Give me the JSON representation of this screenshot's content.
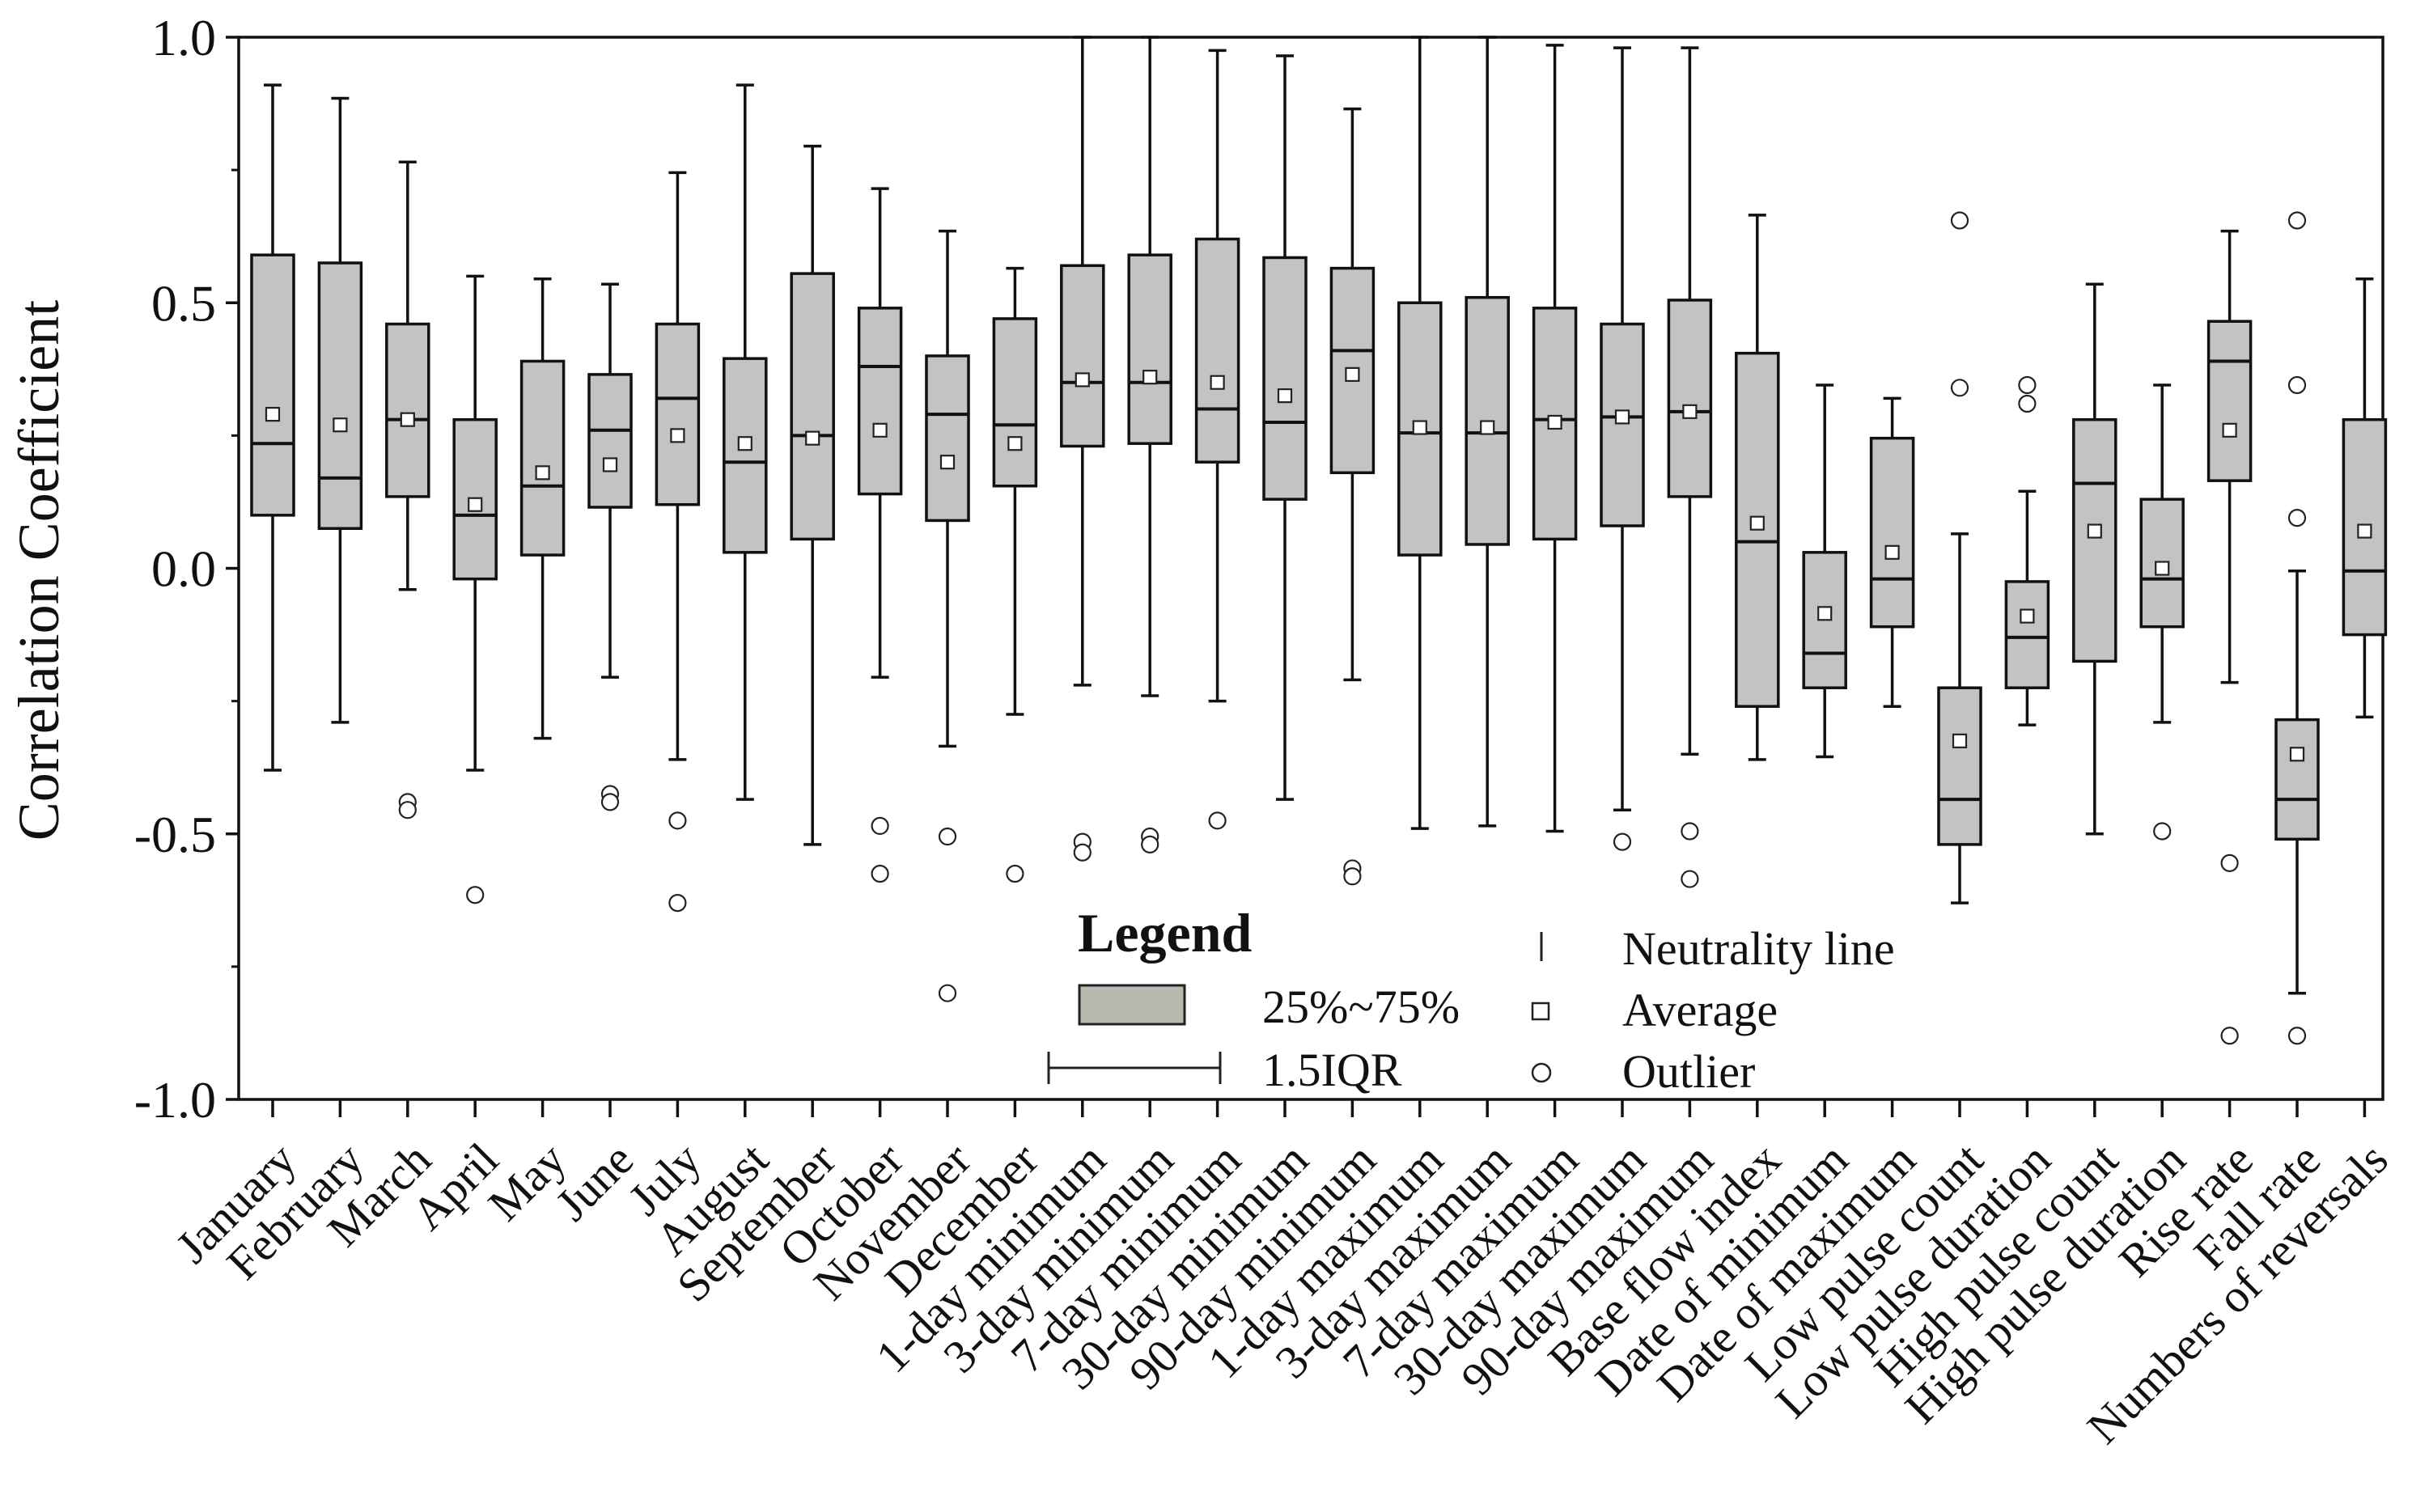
{
  "chart_data": {
    "type": "boxplot",
    "title": "",
    "xlabel": "",
    "ylabel": "Correlation  Coefficient",
    "ylim": [
      -1.0,
      1.0
    ],
    "yticks": [
      "1.0",
      "0.5",
      "0.0",
      "-0.5",
      "-1.0"
    ],
    "ytick_values": [
      1.0,
      0.5,
      0.0,
      -0.5,
      -1.0
    ],
    "box_fill": "#c3c3c3",
    "legend": {
      "title": "Legend",
      "position": "bottom-center",
      "items": [
        {
          "key": "box",
          "label": "25%~75%",
          "color": "#b8bab0"
        },
        {
          "key": "whisker",
          "label": "1.5IQR"
        },
        {
          "key": "neutrality",
          "label": "Neutrality line"
        },
        {
          "key": "average",
          "label": "Average"
        },
        {
          "key": "outlier",
          "label": "Outlier"
        }
      ]
    },
    "categories": [
      "January",
      "February",
      "March",
      "April",
      "May",
      "June",
      "July",
      "August",
      "September",
      "October",
      "November",
      "December",
      "1-day minimum",
      "3-day minimum",
      "7-day minimum",
      "30-day minimum",
      "90-day minimum",
      "1-day maximum",
      "3-day maximum",
      "7-day maximum",
      "30-day maximum",
      "90-day maximum",
      "Base flow index",
      "Date of minimum",
      "Date of maximum",
      "Low pulse count",
      "Low pulse duration",
      "High pulse count",
      "High pulse duration",
      "Rise rate",
      "Fall rate",
      "Numbers of reversals"
    ],
    "series": [
      {
        "name": "January",
        "whisker_low": -0.38,
        "q1": 0.1,
        "median": 0.235,
        "q3": 0.59,
        "whisker_high": 0.91,
        "mean": 0.29,
        "outliers": []
      },
      {
        "name": "February",
        "whisker_low": -0.29,
        "q1": 0.075,
        "median": 0.17,
        "q3": 0.575,
        "whisker_high": 0.885,
        "mean": 0.27,
        "outliers": []
      },
      {
        "name": "March",
        "whisker_low": -0.04,
        "q1": 0.135,
        "median": 0.28,
        "q3": 0.46,
        "whisker_high": 0.765,
        "mean": 0.28,
        "outliers": [
          -0.44,
          -0.455
        ]
      },
      {
        "name": "April",
        "whisker_low": -0.38,
        "q1": -0.02,
        "median": 0.1,
        "q3": 0.28,
        "whisker_high": 0.55,
        "mean": 0.12,
        "outliers": [
          -0.615
        ]
      },
      {
        "name": "May",
        "whisker_low": -0.32,
        "q1": 0.025,
        "median": 0.155,
        "q3": 0.39,
        "whisker_high": 0.545,
        "mean": 0.18,
        "outliers": []
      },
      {
        "name": "June",
        "whisker_low": -0.205,
        "q1": 0.115,
        "median": 0.26,
        "q3": 0.365,
        "whisker_high": 0.535,
        "mean": 0.195,
        "outliers": [
          -0.425,
          -0.44
        ]
      },
      {
        "name": "July",
        "whisker_low": -0.36,
        "q1": 0.12,
        "median": 0.32,
        "q3": 0.46,
        "whisker_high": 0.745,
        "mean": 0.25,
        "outliers": [
          -0.475,
          -0.63
        ]
      },
      {
        "name": "August",
        "whisker_low": -0.435,
        "q1": 0.03,
        "median": 0.2,
        "q3": 0.395,
        "whisker_high": 0.91,
        "mean": 0.235,
        "outliers": []
      },
      {
        "name": "September",
        "whisker_low": -0.52,
        "q1": 0.055,
        "median": 0.25,
        "q3": 0.555,
        "whisker_high": 0.795,
        "mean": 0.245,
        "outliers": []
      },
      {
        "name": "October",
        "whisker_low": -0.205,
        "q1": 0.14,
        "median": 0.38,
        "q3": 0.49,
        "whisker_high": 0.715,
        "mean": 0.26,
        "outliers": [
          -0.485,
          -0.575
        ]
      },
      {
        "name": "November",
        "whisker_low": -0.335,
        "q1": 0.09,
        "median": 0.29,
        "q3": 0.4,
        "whisker_high": 0.635,
        "mean": 0.2,
        "outliers": [
          -0.505,
          -0.8
        ]
      },
      {
        "name": "December",
        "whisker_low": -0.275,
        "q1": 0.155,
        "median": 0.27,
        "q3": 0.47,
        "whisker_high": 0.565,
        "mean": 0.235,
        "outliers": [
          -0.575
        ]
      },
      {
        "name": "1-day minimum",
        "whisker_low": -0.22,
        "q1": 0.23,
        "median": 0.35,
        "q3": 0.57,
        "whisker_high": 1.0,
        "mean": 0.355,
        "outliers": [
          -0.515,
          -0.535
        ]
      },
      {
        "name": "3-day minimum",
        "whisker_low": -0.24,
        "q1": 0.235,
        "median": 0.35,
        "q3": 0.59,
        "whisker_high": 1.0,
        "mean": 0.36,
        "outliers": [
          -0.505,
          -0.52
        ]
      },
      {
        "name": "7-day minimum",
        "whisker_low": -0.25,
        "q1": 0.2,
        "median": 0.3,
        "q3": 0.62,
        "whisker_high": 0.975,
        "mean": 0.35,
        "outliers": [
          -0.475
        ]
      },
      {
        "name": "30-day minimum",
        "whisker_low": -0.435,
        "q1": 0.13,
        "median": 0.275,
        "q3": 0.585,
        "whisker_high": 0.965,
        "mean": 0.325,
        "outliers": []
      },
      {
        "name": "90-day minimum",
        "whisker_low": -0.21,
        "q1": 0.18,
        "median": 0.41,
        "q3": 0.565,
        "whisker_high": 0.865,
        "mean": 0.365,
        "outliers": [
          -0.565,
          -0.58
        ]
      },
      {
        "name": "1-day maximum",
        "whisker_low": -0.49,
        "q1": 0.025,
        "median": 0.255,
        "q3": 0.5,
        "whisker_high": 1.0,
        "mean": 0.265,
        "outliers": []
      },
      {
        "name": "3-day maximum",
        "whisker_low": -0.485,
        "q1": 0.045,
        "median": 0.255,
        "q3": 0.51,
        "whisker_high": 1.0,
        "mean": 0.265,
        "outliers": []
      },
      {
        "name": "7-day maximum",
        "whisker_low": -0.495,
        "q1": 0.055,
        "median": 0.28,
        "q3": 0.49,
        "whisker_high": 0.985,
        "mean": 0.275,
        "outliers": []
      },
      {
        "name": "30-day maximum",
        "whisker_low": -0.455,
        "q1": 0.08,
        "median": 0.285,
        "q3": 0.46,
        "whisker_high": 0.98,
        "mean": 0.285,
        "outliers": [
          -0.515
        ]
      },
      {
        "name": "90-day maximum",
        "whisker_low": -0.35,
        "q1": 0.135,
        "median": 0.295,
        "q3": 0.505,
        "whisker_high": 0.98,
        "mean": 0.295,
        "outliers": [
          -0.495,
          -0.585
        ]
      },
      {
        "name": "Base flow index",
        "whisker_low": -0.36,
        "q1": -0.26,
        "median": 0.05,
        "q3": 0.405,
        "whisker_high": 0.665,
        "mean": 0.085,
        "outliers": []
      },
      {
        "name": "Date of minimum",
        "whisker_low": -0.355,
        "q1": -0.225,
        "median": -0.16,
        "q3": 0.03,
        "whisker_high": 0.345,
        "mean": -0.085,
        "outliers": []
      },
      {
        "name": "Date of maximum",
        "whisker_low": -0.26,
        "q1": -0.11,
        "median": -0.02,
        "q3": 0.245,
        "whisker_high": 0.32,
        "mean": 0.03,
        "outliers": []
      },
      {
        "name": "Low pulse count",
        "whisker_low": -0.63,
        "q1": -0.52,
        "median": -0.435,
        "q3": -0.225,
        "whisker_high": 0.065,
        "mean": -0.325,
        "outliers": [
          0.655,
          0.34
        ]
      },
      {
        "name": "Low pulse duration",
        "whisker_low": -0.295,
        "q1": -0.225,
        "median": -0.13,
        "q3": -0.025,
        "whisker_high": 0.145,
        "mean": -0.09,
        "outliers": [
          0.345,
          0.31
        ]
      },
      {
        "name": "High pulse count",
        "whisker_low": -0.5,
        "q1": -0.175,
        "median": 0.16,
        "q3": 0.28,
        "whisker_high": 0.535,
        "mean": 0.07,
        "outliers": []
      },
      {
        "name": "High pulse duration",
        "whisker_low": -0.29,
        "q1": -0.11,
        "median": -0.02,
        "q3": 0.13,
        "whisker_high": 0.345,
        "mean": 0.0,
        "outliers": [
          -0.495
        ]
      },
      {
        "name": "Rise rate",
        "whisker_low": -0.215,
        "q1": 0.165,
        "median": 0.39,
        "q3": 0.465,
        "whisker_high": 0.635,
        "mean": 0.26,
        "outliers": [
          -0.555,
          -0.88
        ]
      },
      {
        "name": "Fall rate",
        "whisker_low": -0.8,
        "q1": -0.51,
        "median": -0.435,
        "q3": -0.285,
        "whisker_high": -0.005,
        "mean": -0.35,
        "outliers": [
          0.655,
          0.345,
          0.095,
          -0.88
        ]
      },
      {
        "name": "Numbers of reversals",
        "whisker_low": -0.28,
        "q1": -0.125,
        "median": -0.005,
        "q3": 0.28,
        "whisker_high": 0.545,
        "mean": 0.07,
        "outliers": []
      }
    ]
  }
}
